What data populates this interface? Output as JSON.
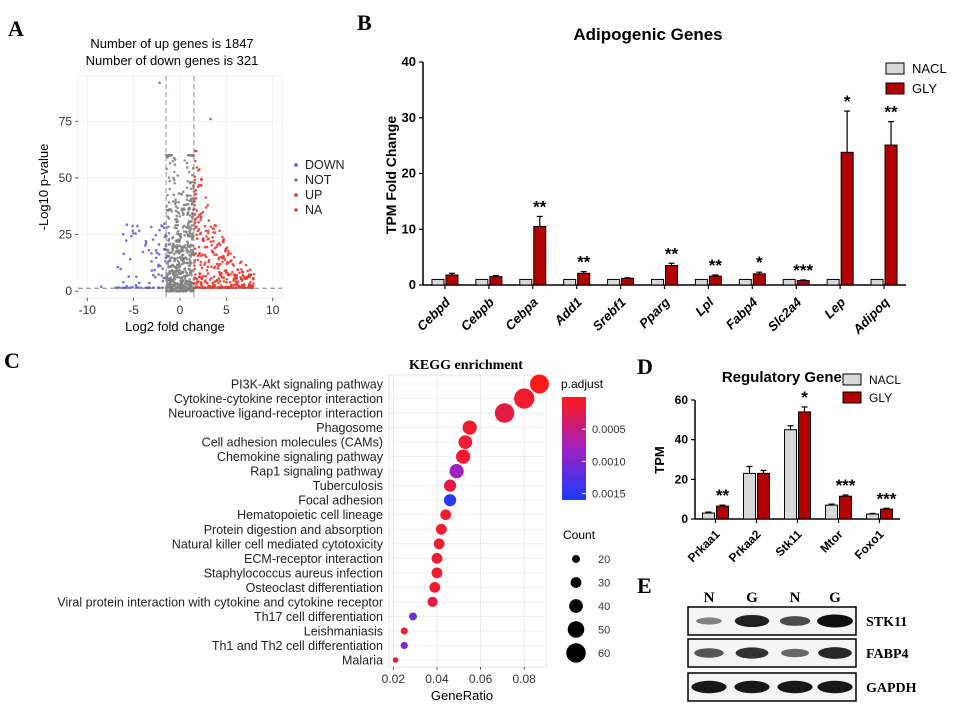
{
  "panel_letters": {
    "A": "A",
    "B": "B",
    "C": "C",
    "D": "D",
    "E": "E"
  },
  "colors": {
    "down": "#5b5bdc",
    "not": "#7f7f7f",
    "up": "#e8322c",
    "na": "#e8322c",
    "nacl_fill": "#d9d9d9",
    "gly_fill": "#b00000",
    "grad_high": "#ff1a1a",
    "grad_mid": "#a020c0",
    "grad_low": "#1a3cff"
  },
  "chart_data": [
    {
      "id": "A",
      "type": "scatter",
      "title_lines": [
        "Number of up genes is 1847",
        "Number of down genes is 321"
      ],
      "xlabel": "Log2 fold change",
      "ylabel": "-Log10 p-value",
      "xlim": [
        -11,
        11
      ],
      "ylim": [
        -3,
        95
      ],
      "xticks": [
        -10,
        -5,
        0,
        5,
        10
      ],
      "yticks": [
        0,
        25,
        50,
        75
      ],
      "x_thresholds": [
        -1.5,
        1.5
      ],
      "y_threshold": 1.3,
      "legend": [
        "DOWN",
        "NOT",
        "UP",
        "NA"
      ],
      "up_count": 1847,
      "down_count": 321
    },
    {
      "id": "B",
      "type": "bar",
      "title": "Adipogenic Genes",
      "ylabel": "TPM Fold Change",
      "ylim": [
        0,
        40
      ],
      "yticks": [
        0,
        10,
        20,
        30,
        40
      ],
      "categories": [
        "Cebpd",
        "Cebpb",
        "Cebpa",
        "Add1",
        "Srebf1",
        "Pparg",
        "Lpl",
        "Fabp4",
        "Slc2a4",
        "Lep",
        "Adipoq"
      ],
      "series": [
        {
          "name": "NACL",
          "values": [
            1,
            1,
            1,
            1,
            1,
            1,
            1,
            1,
            1,
            1,
            1
          ],
          "errors": [
            0,
            0,
            0,
            0,
            0,
            0,
            0,
            0,
            0,
            0,
            0
          ]
        },
        {
          "name": "GLY",
          "values": [
            1.8,
            1.5,
            10.5,
            2.1,
            1.2,
            3.5,
            1.6,
            2.0,
            0.8,
            23.8,
            25.1
          ],
          "errors": [
            0.3,
            0.2,
            1.8,
            0.3,
            0.1,
            0.4,
            0.2,
            0.3,
            0.1,
            7.4,
            4.2
          ]
        }
      ],
      "significance": [
        "",
        "",
        "**",
        "**",
        "",
        "**",
        "**",
        "*",
        "***",
        "*",
        "**"
      ],
      "legend": [
        "NACL",
        "GLY"
      ]
    },
    {
      "id": "C",
      "type": "scatter",
      "title": "KEGG enrichment",
      "xlabel": "GeneRatio",
      "xlim": [
        0.018,
        0.09
      ],
      "xticks": [
        0.02,
        0.04,
        0.06,
        0.08
      ],
      "xticklabels": [
        "0.02",
        "0.04",
        "0.06",
        "0.08"
      ],
      "pathways": [
        {
          "name": "PI3K-Akt signaling pathway",
          "ratio": 0.087,
          "padj": 0.0,
          "count": 58
        },
        {
          "name": "Cytokine-cytokine receptor interaction",
          "ratio": 0.08,
          "padj": 0.0001,
          "count": 63
        },
        {
          "name": "Neuroactive ligand-receptor interaction",
          "ratio": 0.071,
          "padj": 0.0002,
          "count": 60
        },
        {
          "name": "Phagosome",
          "ratio": 0.055,
          "padj": 0.0001,
          "count": 42
        },
        {
          "name": "Cell adhesion molecules (CAMs)",
          "ratio": 0.053,
          "padj": 0.0001,
          "count": 40
        },
        {
          "name": "Chemokine signaling pathway",
          "ratio": 0.052,
          "padj": 0.0001,
          "count": 42
        },
        {
          "name": "Rap1 signaling pathway",
          "ratio": 0.049,
          "padj": 0.0008,
          "count": 42
        },
        {
          "name": "Tuberculosis",
          "ratio": 0.046,
          "padj": 0.0002,
          "count": 35
        },
        {
          "name": "Focal adhesion",
          "ratio": 0.046,
          "padj": 0.0015,
          "count": 35
        },
        {
          "name": "Hematopoietic cell lineage",
          "ratio": 0.044,
          "padj": 0.0001,
          "count": 30
        },
        {
          "name": "Protein digestion and absorption",
          "ratio": 0.042,
          "padj": 0.0001,
          "count": 30
        },
        {
          "name": "Natural killer cell mediated cytotoxicity",
          "ratio": 0.041,
          "padj": 0.0001,
          "count": 30
        },
        {
          "name": "ECM-receptor interaction",
          "ratio": 0.04,
          "padj": 0.0001,
          "count": 30
        },
        {
          "name": "Staphylococcus aureus infection",
          "ratio": 0.04,
          "padj": 0.0001,
          "count": 30
        },
        {
          "name": "Osteoclast differentiation",
          "ratio": 0.039,
          "padj": 0.0001,
          "count": 30
        },
        {
          "name": "Viral protein interaction with cytokine and cytokine receptor",
          "ratio": 0.038,
          "padj": 0.0002,
          "count": 28
        },
        {
          "name": "Th17 cell differentiation",
          "ratio": 0.029,
          "padj": 0.0011,
          "count": 20
        },
        {
          "name": "Leishmaniasis",
          "ratio": 0.025,
          "padj": 0.0001,
          "count": 17
        },
        {
          "name": "Th1 and Th2 cell differentiation",
          "ratio": 0.025,
          "padj": 0.001,
          "count": 18
        },
        {
          "name": "Malaria",
          "ratio": 0.021,
          "padj": 0.0002,
          "count": 12
        }
      ],
      "color_legend": {
        "title": "p.adjust",
        "min": 0.0,
        "max": 0.0016,
        "ticks": [
          0.0005,
          0.001,
          0.0015
        ],
        "ticklabels": [
          "0.0005",
          "0.0010",
          "0.0015"
        ]
      },
      "size_legend": {
        "title": "Count",
        "values": [
          20,
          30,
          40,
          50,
          60
        ]
      }
    },
    {
      "id": "D",
      "type": "bar",
      "title": "Regulatory Genes",
      "ylabel": "TPM",
      "ylim": [
        0,
        60
      ],
      "yticks": [
        0,
        20,
        40,
        60
      ],
      "categories": [
        "Prkaa1",
        "Prkaa2",
        "Stk11",
        "Mtor",
        "Foxo1"
      ],
      "series": [
        {
          "name": "NACL",
          "values": [
            3,
            23,
            45,
            7,
            2.5
          ],
          "errors": [
            0.5,
            3.5,
            2,
            0.5,
            0.3
          ]
        },
        {
          "name": "GLY",
          "values": [
            6.5,
            23,
            54,
            11.5,
            5
          ],
          "errors": [
            0.5,
            1.5,
            2.5,
            0.6,
            0.4
          ]
        }
      ],
      "significance": [
        "**",
        "",
        "*",
        "***",
        "***"
      ],
      "legend": [
        "NACL",
        "GLY"
      ]
    }
  ],
  "western_blot": {
    "lane_labels": [
      "N",
      "G",
      "N",
      "G"
    ],
    "rows": [
      {
        "label": "STK11",
        "intensities": [
          0.35,
          0.9,
          0.65,
          1.0
        ]
      },
      {
        "label": "FABP4",
        "intensities": [
          0.6,
          0.8,
          0.5,
          0.85
        ]
      },
      {
        "label": "GAPDH",
        "intensities": [
          0.95,
          0.95,
          0.95,
          0.95
        ]
      }
    ]
  }
}
